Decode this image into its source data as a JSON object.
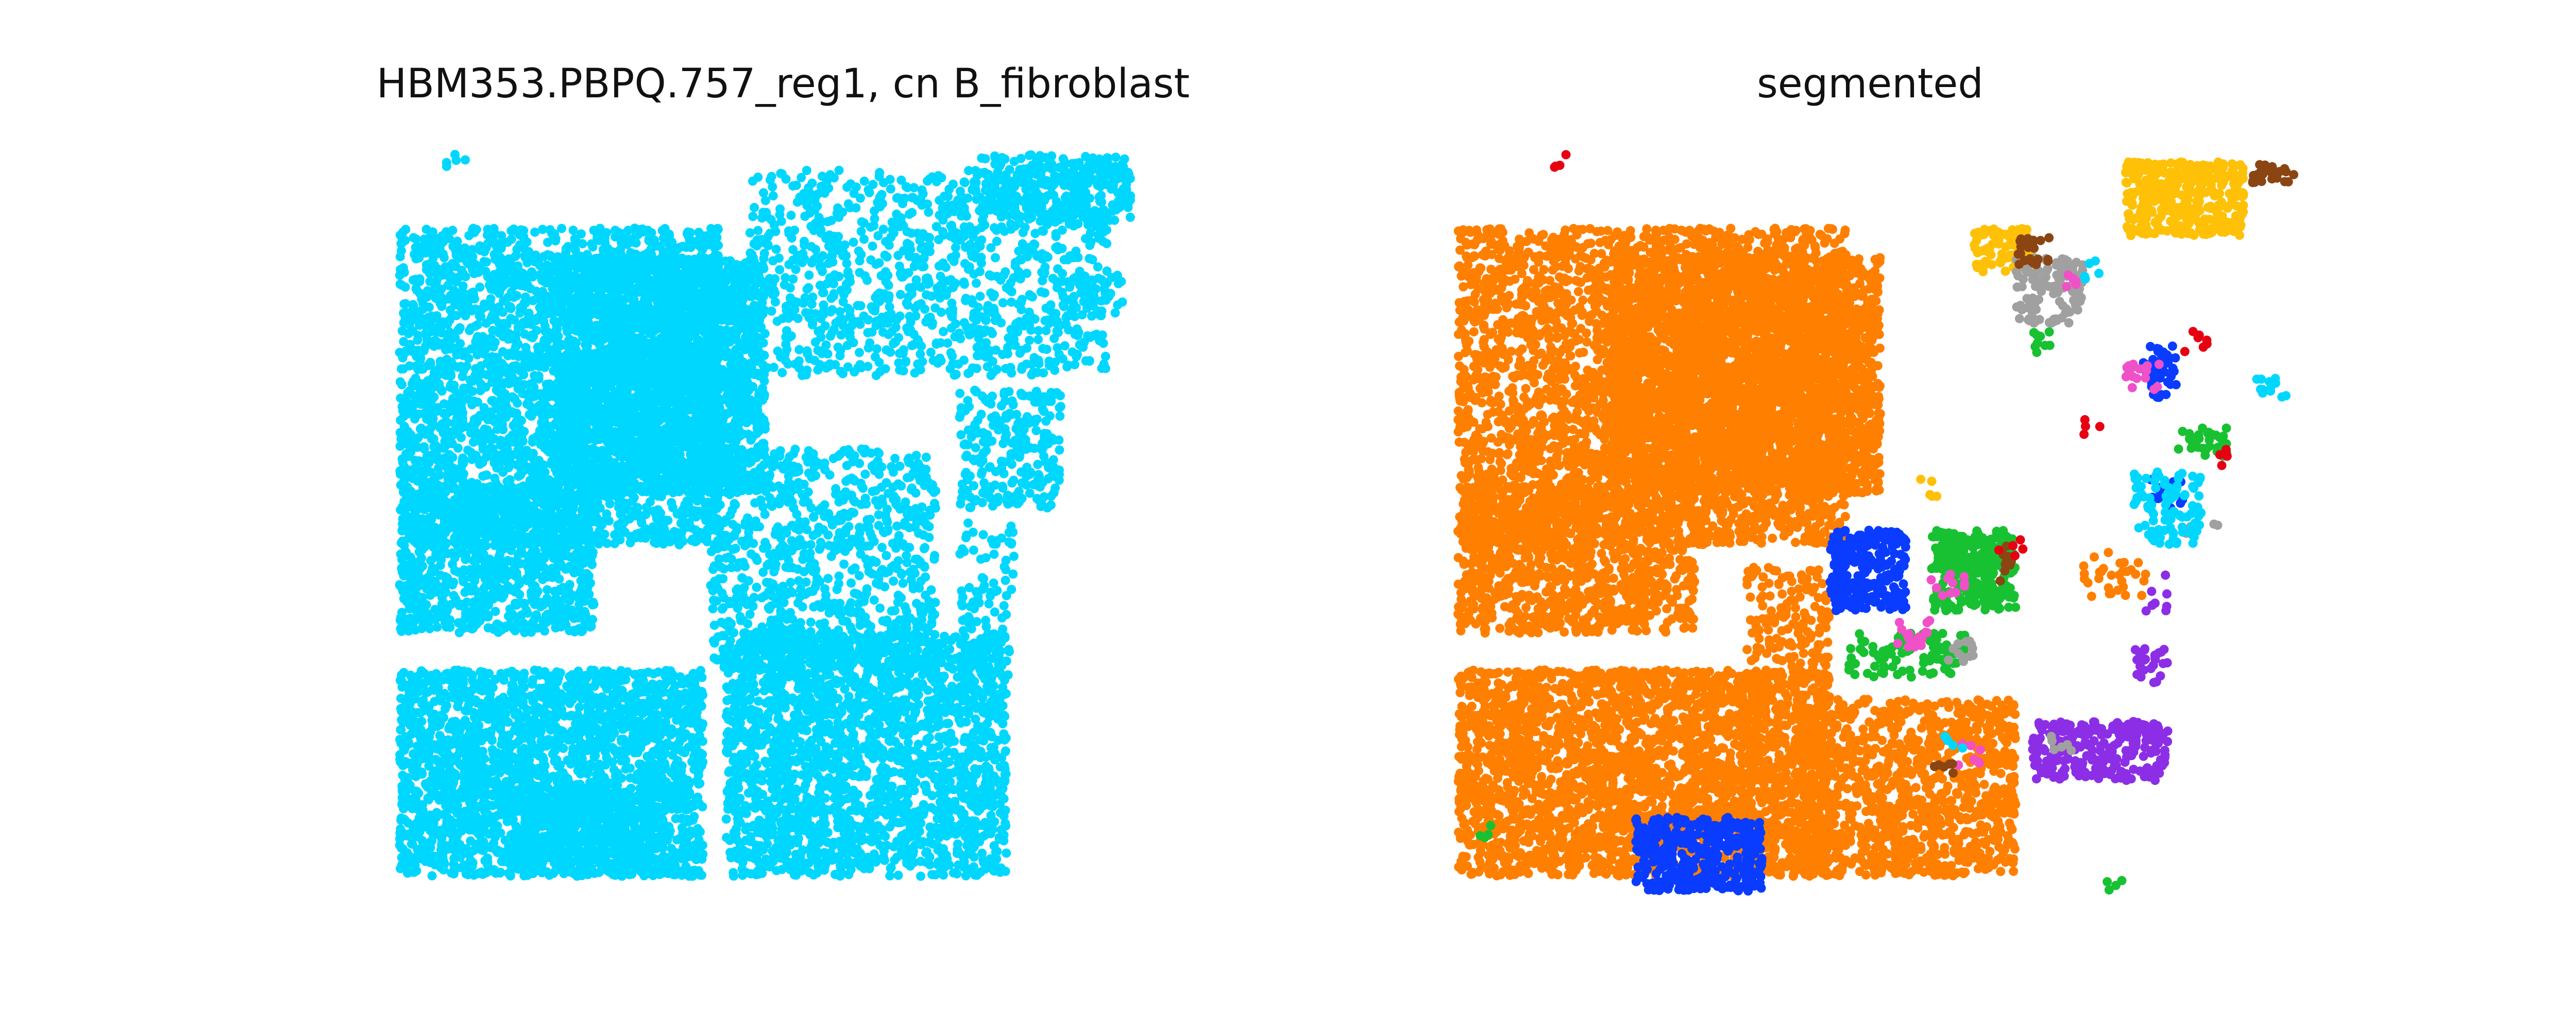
{
  "chart_data": [
    {
      "type": "scatter",
      "title": "HBM353.PBPQ.757_reg1, cn B_fibroblast",
      "axes_visible": false,
      "grid": false,
      "color": "#00d7ff",
      "series": [
        {
          "color": "#00d7ff",
          "regions": [
            {
              "x": [
                0.05,
                0.46
              ],
              "y": [
                0.1,
                0.53
              ],
              "density": 3.2
            },
            {
              "x": [
                0.25,
                0.52
              ],
              "y": [
                0.14,
                0.46
              ],
              "density": 5.0
            },
            {
              "x": [
                0.05,
                0.3
              ],
              "y": [
                0.45,
                0.65
              ],
              "density": 3.6
            },
            {
              "x": [
                0.05,
                0.44
              ],
              "y": [
                0.7,
                0.98
              ],
              "density": 4.2
            },
            {
              "x": [
                0.47,
                0.83
              ],
              "y": [
                0.65,
                0.98
              ],
              "density": 3.4
            },
            {
              "x": [
                0.45,
                0.74
              ],
              "y": [
                0.4,
                0.7
              ],
              "density": 2.0
            },
            {
              "x": [
                0.5,
                0.96
              ],
              "y": [
                0.02,
                0.3
              ],
              "density": 1.6
            },
            {
              "x": [
                0.79,
                0.99
              ],
              "y": [
                0.0,
                0.09
              ],
              "density": 3.0
            },
            {
              "x": [
                0.77,
                0.9
              ],
              "y": [
                0.32,
                0.48
              ],
              "density": 2.2
            },
            {
              "x": [
                0.77,
                0.84
              ],
              "y": [
                0.5,
                0.72
              ],
              "density": 1.2
            },
            {
              "x": [
                0.19,
                0.39
              ],
              "y": [
                0.86,
                0.98
              ],
              "density": 2.6
            },
            {
              "x": [
                0.11,
                0.14
              ],
              "y": [
                0.0,
                0.02
              ],
              "density": 1.5
            },
            {
              "x": [
                0.9,
                0.98
              ],
              "y": [
                0.16,
                0.22
              ],
              "density": 1.2
            }
          ]
        }
      ]
    },
    {
      "type": "scatter",
      "title": "segmented",
      "axes_visible": false,
      "grid": false,
      "series": [
        {
          "color": "#ff7f00",
          "regions": [
            {
              "x": [
                0.0,
                0.46
              ],
              "y": [
                0.1,
                0.53
              ],
              "density": 3.2
            },
            {
              "x": [
                0.18,
                0.5
              ],
              "y": [
                0.14,
                0.46
              ],
              "density": 5.0
            },
            {
              "x": [
                0.0,
                0.28
              ],
              "y": [
                0.45,
                0.65
              ],
              "density": 3.6
            },
            {
              "x": [
                0.0,
                0.44
              ],
              "y": [
                0.7,
                0.98
              ],
              "density": 4.2
            },
            {
              "x": [
                0.4,
                0.66
              ],
              "y": [
                0.74,
                0.98
              ],
              "density": 3.4
            },
            {
              "x": [
                0.34,
                0.44
              ],
              "y": [
                0.56,
                0.72
              ],
              "density": 2.0
            },
            {
              "x": [
                0.74,
                0.82
              ],
              "y": [
                0.54,
                0.6
              ],
              "density": 1.2
            }
          ]
        },
        {
          "color": "#0a3cff",
          "regions": [
            {
              "x": [
                0.21,
                0.36
              ],
              "y": [
                0.9,
                1.0
              ],
              "density": 5.0
            },
            {
              "x": [
                0.44,
                0.53
              ],
              "y": [
                0.51,
                0.62
              ],
              "density": 5.0
            },
            {
              "x": [
                0.81,
                0.85
              ],
              "y": [
                0.26,
                0.33
              ],
              "density": 3.0
            },
            {
              "x": [
                0.82,
                0.86
              ],
              "y": [
                0.44,
                0.48
              ],
              "density": 1.5
            }
          ]
        },
        {
          "color": "#18c131",
          "regions": [
            {
              "x": [
                0.56,
                0.66
              ],
              "y": [
                0.51,
                0.62
              ],
              "density": 5.0
            },
            {
              "x": [
                0.46,
                0.6
              ],
              "y": [
                0.65,
                0.71
              ],
              "density": 2.0
            },
            {
              "x": [
                0.68,
                0.71
              ],
              "y": [
                0.24,
                0.27
              ],
              "density": 2.0
            },
            {
              "x": [
                0.85,
                0.91
              ],
              "y": [
                0.37,
                0.41
              ],
              "density": 2.5
            },
            {
              "x": [
                0.02,
                0.04
              ],
              "y": [
                0.91,
                0.93
              ],
              "density": 1.0
            },
            {
              "x": [
                0.76,
                0.79
              ],
              "y": [
                0.98,
                1.0
              ],
              "density": 1.0
            }
          ]
        },
        {
          "color": "#8c2ee6",
          "regions": [
            {
              "x": [
                0.68,
                0.84
              ],
              "y": [
                0.77,
                0.85
              ],
              "density": 4.0
            },
            {
              "x": [
                0.8,
                0.84
              ],
              "y": [
                0.67,
                0.72
              ],
              "density": 2.5
            },
            {
              "x": [
                0.81,
                0.84
              ],
              "y": [
                0.57,
                0.62
              ],
              "density": 1.0
            }
          ]
        },
        {
          "color": "#ffc107",
          "regions": [
            {
              "x": [
                0.79,
                0.93
              ],
              "y": [
                0.01,
                0.11
              ],
              "density": 5.0
            },
            {
              "x": [
                0.61,
                0.68
              ],
              "y": [
                0.1,
                0.16
              ],
              "density": 4.0
            },
            {
              "x": [
                0.54,
                0.57
              ],
              "y": [
                0.44,
                0.47
              ],
              "density": 1.0
            }
          ]
        },
        {
          "color": "#a0a0a0",
          "regions": [
            {
              "x": [
                0.66,
                0.74
              ],
              "y": [
                0.14,
                0.23
              ],
              "density": 3.0
            },
            {
              "x": [
                0.58,
                0.62
              ],
              "y": [
                0.66,
                0.69
              ],
              "density": 2.0
            },
            {
              "x": [
                0.7,
                0.74
              ],
              "y": [
                0.79,
                0.81
              ],
              "density": 1.5
            },
            {
              "x": [
                0.86,
                0.9
              ],
              "y": [
                0.5,
                0.52
              ],
              "density": 1.5
            }
          ]
        },
        {
          "color": "#f050c8",
          "regions": [
            {
              "x": [
                0.79,
                0.83
              ],
              "y": [
                0.28,
                0.32
              ],
              "density": 2.0
            },
            {
              "x": [
                0.52,
                0.56
              ],
              "y": [
                0.63,
                0.67
              ],
              "density": 2.0
            },
            {
              "x": [
                0.56,
                0.6
              ],
              "y": [
                0.57,
                0.6
              ],
              "density": 2.0
            },
            {
              "x": [
                0.59,
                0.62
              ],
              "y": [
                0.8,
                0.83
              ],
              "density": 1.5
            },
            {
              "x": [
                0.71,
                0.74
              ],
              "y": [
                0.16,
                0.18
              ],
              "density": 1.5
            }
          ]
        },
        {
          "color": "#8b4513",
          "regions": [
            {
              "x": [
                0.94,
                0.99
              ],
              "y": [
                0.01,
                0.04
              ],
              "density": 3.0
            },
            {
              "x": [
                0.66,
                0.7
              ],
              "y": [
                0.11,
                0.15
              ],
              "density": 3.0
            },
            {
              "x": [
                0.64,
                0.66
              ],
              "y": [
                0.53,
                0.58
              ],
              "density": 2.0
            },
            {
              "x": [
                0.56,
                0.6
              ],
              "y": [
                0.82,
                0.84
              ],
              "density": 1.5
            }
          ]
        },
        {
          "color": "#e60012",
          "regions": [
            {
              "x": [
                0.11,
                0.13
              ],
              "y": [
                0.0,
                0.02
              ],
              "density": 1.5
            },
            {
              "x": [
                0.86,
                0.89
              ],
              "y": [
                0.24,
                0.27
              ],
              "density": 1.5
            },
            {
              "x": [
                0.64,
                0.67
              ],
              "y": [
                0.52,
                0.55
              ],
              "density": 1.0
            },
            {
              "x": [
                0.72,
                0.76
              ],
              "y": [
                0.36,
                0.38
              ],
              "density": 1.0
            },
            {
              "x": [
                0.9,
                0.92
              ],
              "y": [
                0.4,
                0.43
              ],
              "density": 1.0
            }
          ]
        },
        {
          "color": "#00d7ff",
          "regions": [
            {
              "x": [
                0.8,
                0.88
              ],
              "y": [
                0.43,
                0.53
              ],
              "density": 2.5
            },
            {
              "x": [
                0.94,
                0.98
              ],
              "y": [
                0.3,
                0.33
              ],
              "density": 2.0
            },
            {
              "x": [
                0.73,
                0.76
              ],
              "y": [
                0.14,
                0.17
              ],
              "density": 1.0
            },
            {
              "x": [
                0.57,
                0.6
              ],
              "y": [
                0.79,
                0.81
              ],
              "density": 1.0
            }
          ]
        }
      ]
    }
  ]
}
